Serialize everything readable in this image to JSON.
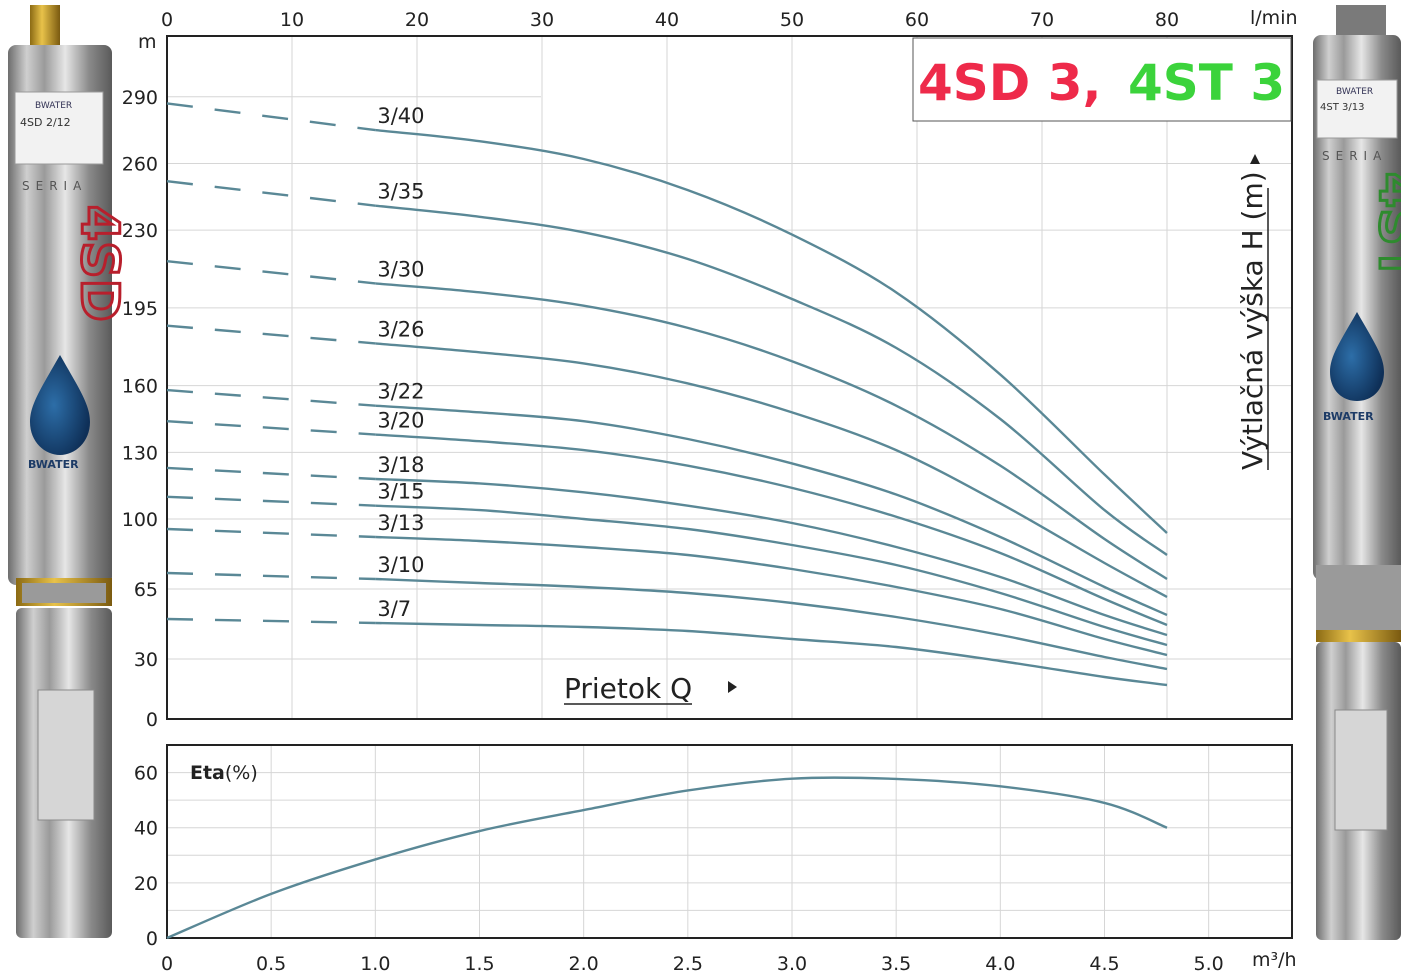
{
  "title": {
    "model_a": "4SD 3,",
    "model_a_color": "#ee2a4a",
    "model_b": "4ST 3",
    "model_b_color": "#3bd33b"
  },
  "pumps": {
    "left": {
      "brand": "BWATER",
      "series_text": "SERIA",
      "model_text": "4SD",
      "label_model": "4SD 2/12"
    },
    "right": {
      "brand": "BWATER",
      "series_text": "SERIA",
      "model_text": "4ST",
      "label_model": "4ST 3/13"
    }
  },
  "colors": {
    "curve": "#5a8896",
    "grid": "#d6d6d6",
    "frame": "#222222"
  },
  "chart_data": [
    {
      "type": "line",
      "title": "4SD 3, 4ST 3",
      "xlabel": "Prietok Q",
      "x_unit_top": "l/min",
      "x_unit_bottom": "m³/h",
      "ylabel": "Výtlačná výška H (m)",
      "y_unit": "m",
      "xlim_lmin": [
        0,
        90
      ],
      "xlim_m3h": [
        0,
        5.4
      ],
      "x_ticks_lmin": [
        "0",
        "10",
        "20",
        "30",
        "40",
        "50",
        "60",
        "70",
        "80"
      ],
      "y_ticks": [
        "0",
        "30",
        "65",
        "100",
        "130",
        "160",
        "195",
        "230",
        "260",
        "290"
      ],
      "grid": true,
      "dashed_segment_x_m3h": [
        0,
        1.0
      ],
      "x": [
        0,
        1.0,
        1.5,
        2.0,
        2.5,
        3.0,
        3.5,
        4.0,
        4.5,
        4.8
      ],
      "series": [
        {
          "name": "3/40",
          "values": [
            287,
            275,
            270,
            262,
            248,
            228,
            202,
            165,
            120,
            93
          ]
        },
        {
          "name": "3/35",
          "values": [
            252,
            241,
            236,
            229,
            217,
            199,
            177,
            145,
            104,
            82
          ]
        },
        {
          "name": "3/30",
          "values": [
            216,
            206,
            202,
            196,
            186,
            171,
            151,
            124,
            90,
            70
          ]
        },
        {
          "name": "3/26",
          "values": [
            187,
            179,
            175,
            170,
            161,
            148,
            131,
            107,
            78,
            61
          ]
        },
        {
          "name": "3/22",
          "values": [
            158,
            151,
            148,
            144,
            136,
            125,
            111,
            91,
            66,
            52
          ]
        },
        {
          "name": "3/20",
          "values": [
            144,
            138,
            135,
            131,
            124,
            114,
            101,
            83,
            60,
            47
          ]
        },
        {
          "name": "3/18",
          "values": [
            123,
            118,
            116,
            112,
            106,
            98,
            86,
            71,
            52,
            42
          ]
        },
        {
          "name": "3/15",
          "values": [
            110,
            106,
            104,
            100,
            95,
            87,
            77,
            63,
            46,
            37
          ]
        },
        {
          "name": "3/13",
          "values": [
            95,
            91,
            89,
            86,
            82,
            75,
            66,
            55,
            40,
            32
          ]
        },
        {
          "name": "3/10",
          "values": [
            73,
            70,
            68,
            66,
            63,
            58,
            51,
            42,
            31,
            25
          ]
        },
        {
          "name": "3/7",
          "values": [
            50,
            48,
            47,
            46,
            44,
            40,
            36,
            29,
            21,
            17
          ]
        }
      ]
    },
    {
      "type": "line",
      "title": "",
      "ylabel": "Eta",
      "ylabel_unit": "(%)",
      "xlabel": "",
      "x_unit": "m³/h",
      "xlim": [
        0,
        5.4
      ],
      "ylim": [
        0,
        70
      ],
      "x_ticks": [
        "0",
        "0.5",
        "1.0",
        "1.5",
        "2.0",
        "2.5",
        "3.0",
        "3.5",
        "4.0",
        "4.5",
        "5.0"
      ],
      "y_ticks": [
        "0",
        "20",
        "40",
        "60"
      ],
      "grid": true,
      "x": [
        0,
        0.5,
        1.0,
        1.5,
        2.0,
        2.5,
        3.0,
        3.5,
        4.0,
        4.5,
        4.8
      ],
      "series": [
        {
          "name": "Eta",
          "values": [
            0,
            16,
            28.5,
            38.8,
            46.4,
            53.5,
            57.8,
            57.7,
            55.0,
            49.0,
            40.0
          ]
        }
      ]
    }
  ]
}
